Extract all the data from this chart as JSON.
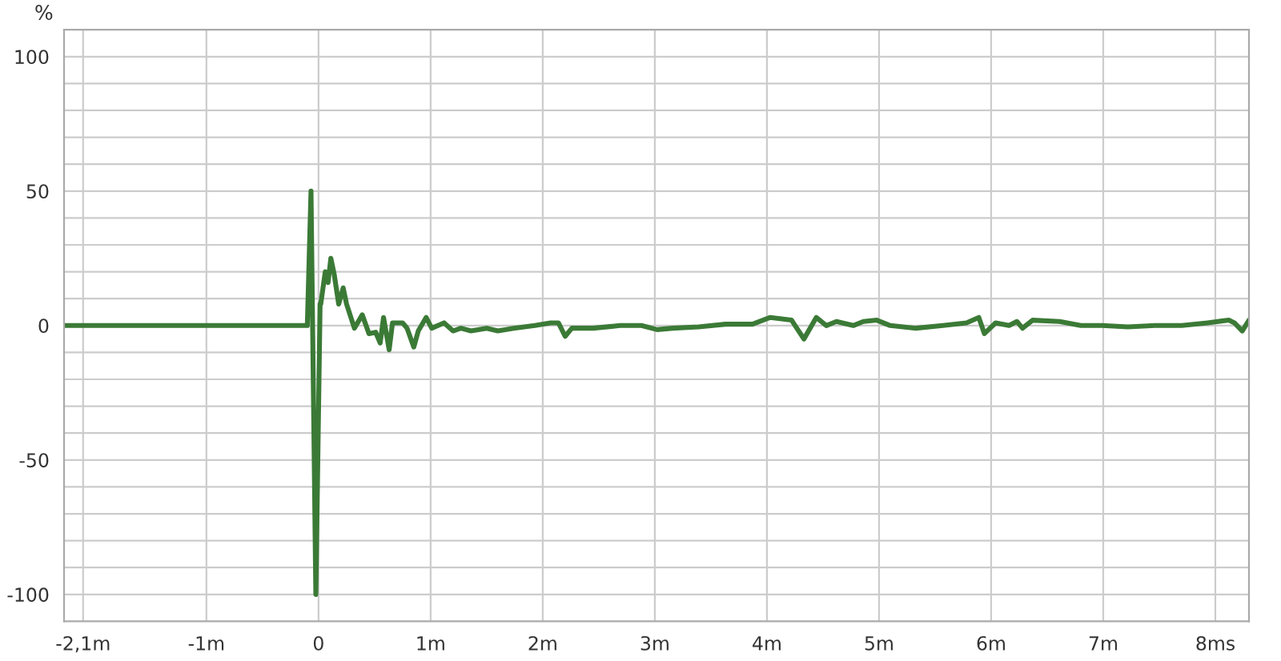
{
  "chart_data": {
    "type": "line",
    "ylabel": "%",
    "x": [
      -2.27,
      -0.1,
      -0.067,
      -0.024,
      0.014,
      0.02,
      0.06,
      0.085,
      0.11,
      0.14,
      0.18,
      0.22,
      0.25,
      0.32,
      0.39,
      0.45,
      0.51,
      0.55,
      0.58,
      0.63,
      0.66,
      0.75,
      0.79,
      0.85,
      0.89,
      0.96,
      1.01,
      1.12,
      1.2,
      1.27,
      1.36,
      1.5,
      1.6,
      1.74,
      1.93,
      2.07,
      2.14,
      2.2,
      2.26,
      2.45,
      2.69,
      2.88,
      3.02,
      3.16,
      3.39,
      3.63,
      3.87,
      4.03,
      4.22,
      4.33,
      4.44,
      4.53,
      4.62,
      4.77,
      4.86,
      4.98,
      5.1,
      5.33,
      5.57,
      5.78,
      5.89,
      5.94,
      6.04,
      6.16,
      6.23,
      6.28,
      6.37,
      6.61,
      6.8,
      6.99,
      7.22,
      7.46,
      7.7,
      7.93,
      8.12,
      8.17,
      8.24,
      8.3
    ],
    "series": [
      {
        "color": "#3b7a36",
        "values": [
          0,
          0,
          50,
          -100,
          8,
          8,
          20,
          16,
          25,
          19,
          8,
          14,
          8,
          -1,
          4,
          -3,
          -2.5,
          -6.5,
          3,
          -9,
          1,
          1,
          -1,
          -8,
          -2,
          3,
          -1,
          1,
          -2,
          -1,
          -2,
          -1,
          -2,
          -1,
          0,
          1,
          1,
          -4,
          -1,
          -1,
          0,
          0,
          -1.5,
          -1,
          -0.5,
          0.5,
          0.5,
          3,
          2,
          -5,
          3,
          0,
          1.5,
          0,
          1.5,
          2,
          0,
          -1,
          0,
          1,
          3,
          -3,
          1,
          0,
          1.5,
          -1,
          2,
          1.5,
          0,
          0,
          -0.5,
          0,
          0,
          1,
          2,
          1,
          -2,
          2
        ]
      }
    ],
    "xlim": [
      -2.27,
      8.3
    ],
    "xticks": [
      {
        "value": -2.1,
        "label": "-2,1m"
      },
      {
        "value": -1,
        "label": "-1m"
      },
      0,
      {
        "value": 1,
        "label": "1m"
      },
      {
        "value": 2,
        "label": "2m"
      },
      {
        "value": 3,
        "label": "3m"
      },
      {
        "value": 4,
        "label": "4m"
      },
      {
        "value": 5,
        "label": "5m"
      },
      {
        "value": 6,
        "label": "6m"
      },
      {
        "value": 7,
        "label": "7m"
      },
      {
        "value": 8,
        "label": "8ms"
      }
    ],
    "ylim": [
      -110,
      110
    ],
    "yticks": [
      -100,
      {
        "value": -90,
        "label": null
      },
      {
        "value": -80,
        "label": null
      },
      {
        "value": -70,
        "label": null
      },
      {
        "value": -60,
        "label": null
      },
      -50,
      {
        "value": -40,
        "label": null
      },
      {
        "value": -30,
        "label": null
      },
      {
        "value": -20,
        "label": null
      },
      {
        "value": -10,
        "label": null
      },
      0,
      {
        "value": 10,
        "label": null
      },
      {
        "value": 20,
        "label": null
      },
      {
        "value": 30,
        "label": null
      },
      {
        "value": 40,
        "label": null
      },
      50,
      {
        "value": 60,
        "label": null
      },
      {
        "value": 70,
        "label": null
      },
      {
        "value": 80,
        "label": null
      },
      {
        "value": 90,
        "label": null
      },
      100
    ],
    "grid": true,
    "marker": "none",
    "line_style": "solid",
    "legend": false
  }
}
